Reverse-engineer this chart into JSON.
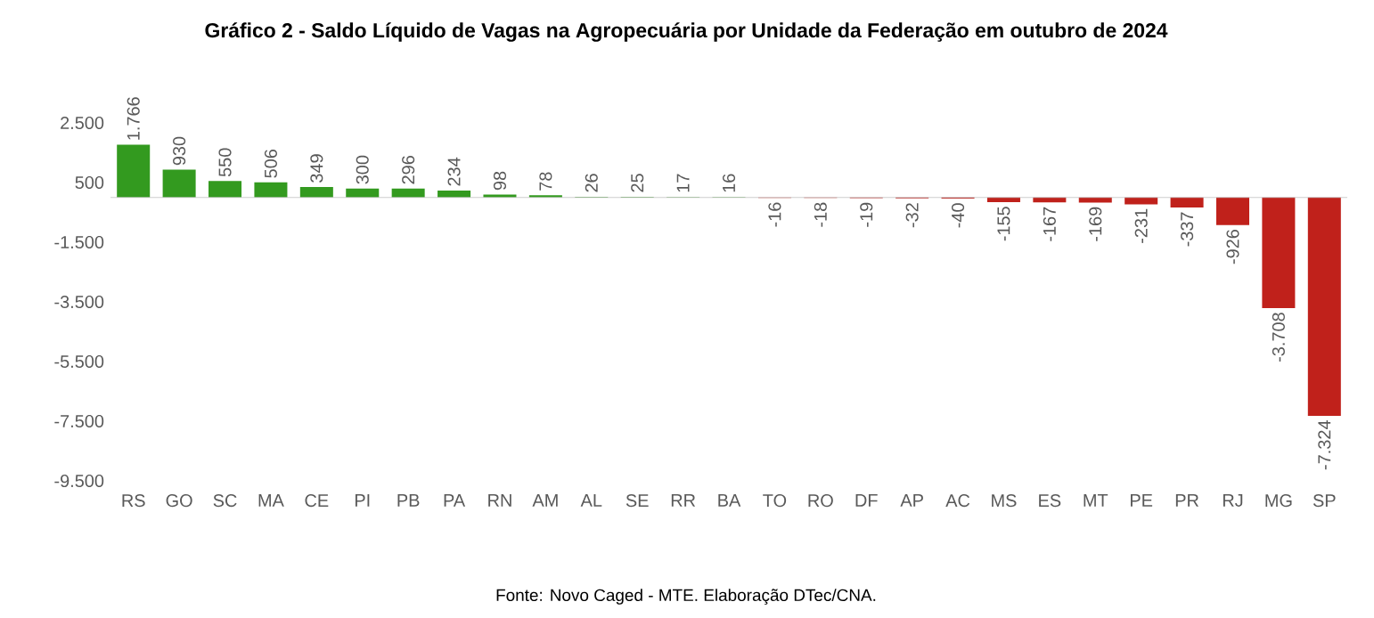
{
  "chart_data": {
    "type": "bar",
    "title": "Gráfico 2 - Saldo Líquido de Vagas na Agropecuária por Unidade da Federação em outubro de 2024",
    "categories": [
      "RS",
      "GO",
      "SC",
      "MA",
      "CE",
      "PI",
      "PB",
      "PA",
      "RN",
      "AM",
      "AL",
      "SE",
      "RR",
      "BA",
      "TO",
      "RO",
      "DF",
      "AP",
      "AC",
      "MS",
      "ES",
      "MT",
      "PE",
      "PR",
      "RJ",
      "MG",
      "SP"
    ],
    "values": [
      1766,
      930,
      550,
      506,
      349,
      300,
      296,
      234,
      98,
      78,
      26,
      25,
      17,
      16,
      -16,
      -18,
      -19,
      -32,
      -40,
      -155,
      -167,
      -169,
      -231,
      -337,
      -926,
      -3708,
      -7324
    ],
    "value_labels": [
      "1.766",
      "930",
      "550",
      "506",
      "349",
      "300",
      "296",
      "234",
      "98",
      "78",
      "26",
      "25",
      "17",
      "16",
      "-16",
      "-18",
      "-19",
      "-32",
      "-40",
      "-155",
      "-167",
      "-169",
      "-231",
      "-337",
      "-926",
      "-3.708",
      "-7.324"
    ],
    "colors": [
      "#339a1f",
      "#339a1f",
      "#339a1f",
      "#339a1f",
      "#339a1f",
      "#339a1f",
      "#339a1f",
      "#339a1f",
      "#339a1f",
      "#339a1f",
      "#339a1f",
      "#339a1f",
      "#339a1f",
      "#339a1f",
      "#c0211b",
      "#c0211b",
      "#c0211b",
      "#c0211b",
      "#c0211b",
      "#c0211b",
      "#c0211b",
      "#c0211b",
      "#c0211b",
      "#c0211b",
      "#c0211b",
      "#c0211b",
      "#c0211b"
    ],
    "ylim": [
      -9500,
      2500
    ],
    "yticks": [
      {
        "value": 2500,
        "label": "2.500"
      },
      {
        "value": 500,
        "label": "500"
      },
      {
        "value": -1500,
        "label": "-1.500"
      },
      {
        "value": -3500,
        "label": "-3.500"
      },
      {
        "value": -5500,
        "label": "-5.500"
      },
      {
        "value": -7500,
        "label": "-7.500"
      },
      {
        "value": -9500,
        "label": "-9.500"
      }
    ],
    "annotations": [
      "Fonte: Novo Caged - MTE. Elaboração DTec/CNA."
    ]
  }
}
